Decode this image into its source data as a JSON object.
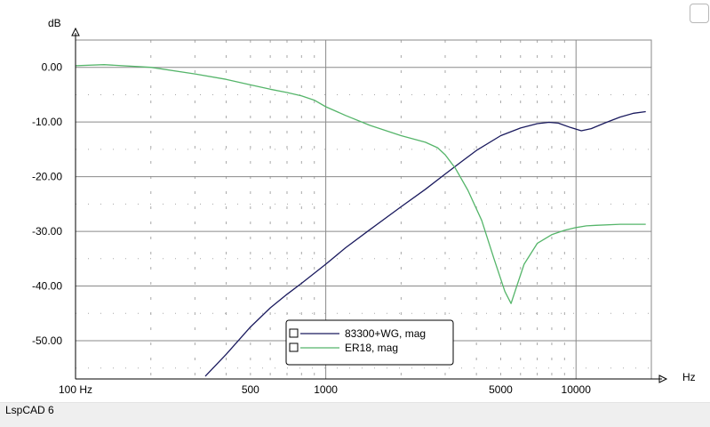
{
  "app": {
    "name": "LspCAD 6"
  },
  "chart_data": {
    "type": "line",
    "xscale": "log",
    "xlabel": "Hz",
    "ylabel": "dB",
    "xlim": [
      100,
      20000
    ],
    "ylim": [
      -57,
      5
    ],
    "grid": true,
    "x_tick_labels": [
      {
        "value": 100,
        "label": "100 Hz"
      },
      {
        "value": 500,
        "label": "500"
      },
      {
        "value": 1000,
        "label": "1000"
      },
      {
        "value": 5000,
        "label": "5000"
      },
      {
        "value": 10000,
        "label": "10000"
      }
    ],
    "y_ticks": [
      0,
      -10,
      -20,
      -30,
      -40,
      -50
    ],
    "y_tick_labels": [
      "0.00",
      "-10.00",
      "-20.00",
      "-30.00",
      "-40.00",
      "-50.00"
    ],
    "legend_placement": "bottom-center",
    "series": [
      {
        "name": "83300+WG, mag",
        "color": "#1a1a5e",
        "x": [
          330,
          400,
          500,
          600,
          700,
          800,
          1000,
          1200,
          1500,
          2000,
          2500,
          3000,
          3500,
          4000,
          5000,
          6000,
          7000,
          7800,
          8500,
          9500,
          10500,
          11500,
          13000,
          15000,
          17000,
          19000
        ],
        "y": [
          -56.5,
          -52.5,
          -47.5,
          -44,
          -41.5,
          -39.5,
          -36,
          -33,
          -29.7,
          -25.5,
          -22.3,
          -19.5,
          -17.2,
          -15.2,
          -12.5,
          -11.1,
          -10.3,
          -10.05,
          -10.2,
          -11,
          -11.6,
          -11.2,
          -10.2,
          -9.1,
          -8.4,
          -8.1
        ]
      },
      {
        "name": "ER18, mag",
        "color": "#55b56a",
        "x": [
          100,
          130,
          200,
          300,
          400,
          500,
          600,
          700,
          800,
          900,
          1000,
          1200,
          1500,
          2000,
          2500,
          2800,
          3000,
          3300,
          3700,
          4200,
          4700,
          5200,
          5500,
          5800,
          6200,
          7000,
          8000,
          9000,
          10000,
          11000,
          12000,
          15000,
          19000
        ],
        "y": [
          0.3,
          0.5,
          0,
          -1.2,
          -2.2,
          -3.2,
          -4,
          -4.6,
          -5.2,
          -6,
          -7.2,
          -8.8,
          -10.6,
          -12.5,
          -13.7,
          -14.7,
          -16,
          -18.5,
          -22.5,
          -28,
          -35,
          -41,
          -43.2,
          -40,
          -36,
          -32.2,
          -30.6,
          -29.8,
          -29.3,
          -29,
          -28.9,
          -28.7,
          -28.7
        ]
      }
    ]
  }
}
